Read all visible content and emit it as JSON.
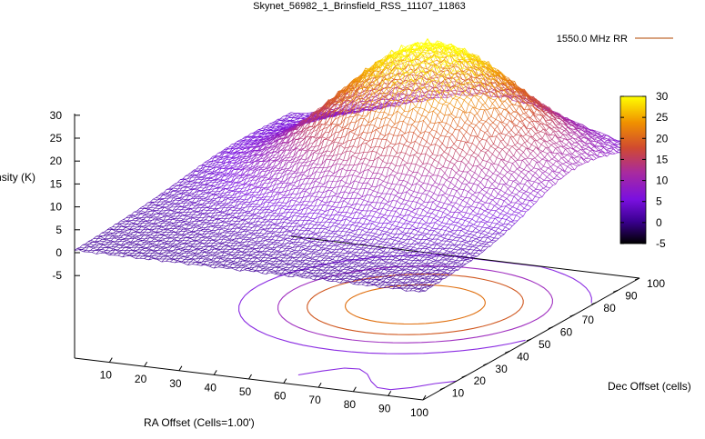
{
  "chart_data": {
    "type": "surface",
    "title": "Skynet_56982_1_Brinsfield_RSS_11107_11863",
    "legend": {
      "label": "1550.0 MHz RR",
      "placement": "top-right"
    },
    "xlabel": "RA Offset (Cells=1.00')",
    "ylabel": "Dec Offset (cells)",
    "zlabel": "Intensity (K)",
    "x_ticks": [
      "10",
      "20",
      "30",
      "40",
      "50",
      "60",
      "70",
      "80",
      "90",
      "100"
    ],
    "y_ticks": [
      "10",
      "20",
      "30",
      "40",
      "50",
      "60",
      "70",
      "80",
      "90",
      "100"
    ],
    "z_ticks": [
      "-5",
      "0",
      "5",
      "10",
      "15",
      "20",
      "25",
      "30"
    ],
    "colorbar_ticks": [
      "-5",
      "0",
      "5",
      "10",
      "15",
      "20",
      "25",
      "30"
    ],
    "xlim": [
      0,
      100
    ],
    "ylim": [
      0,
      100
    ],
    "zlim": [
      -5,
      30
    ],
    "colorbar_range": [
      -5,
      30
    ],
    "colormap": [
      "#000000",
      "#5a00b8",
      "#8a2be2",
      "#b8308a",
      "#e05a10",
      "#f0a000",
      "#ffff00"
    ],
    "surface_model": {
      "peak_intensity_K": 29,
      "peak_ra_cell": 58,
      "peak_dec_cell": 70,
      "ra_width_cells": 24,
      "dec_width_cells": 20,
      "baseline_K": 0.5
    },
    "contour_levels": [
      5,
      10,
      15,
      22
    ],
    "contour_colors": [
      "#8a2be2",
      "#a030c0",
      "#d05820",
      "#e07010"
    ]
  }
}
